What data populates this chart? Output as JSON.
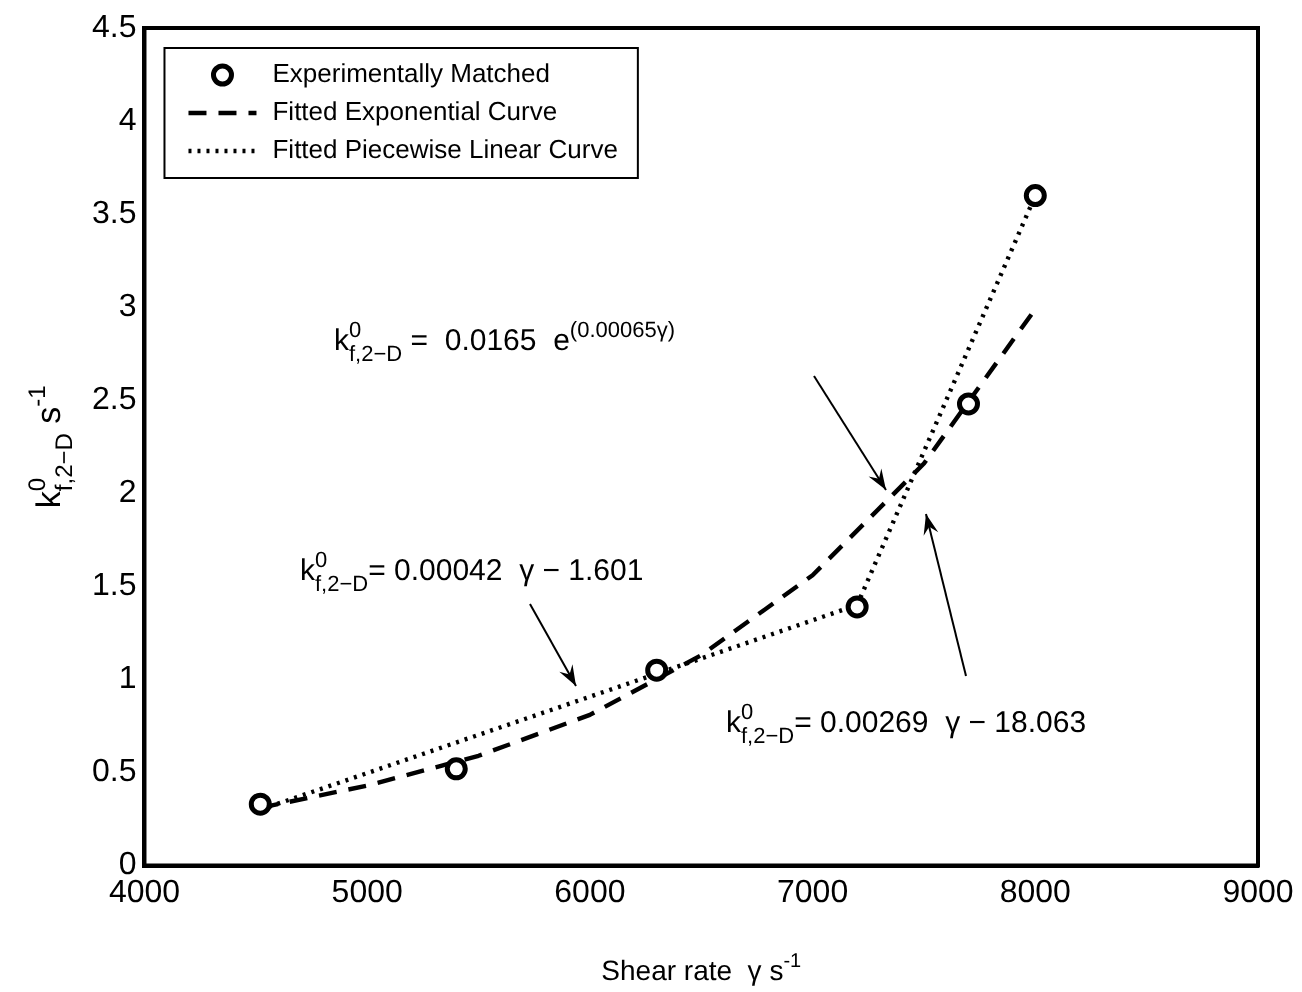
{
  "chart_data": {
    "type": "scatter",
    "xlabel": "Shear rate  γ s$^{-1}$",
    "ylabel": "k$^{0}$$_{f,2−D}$ s$^{-1}$",
    "xlim": [
      4000,
      9000
    ],
    "xticks": [
      4000,
      5000,
      6000,
      7000,
      8000,
      9000
    ],
    "ylim": [
      0,
      4.5
    ],
    "yticks": [
      0,
      0.5,
      1,
      1.5,
      2,
      2.5,
      3,
      3.5,
      4,
      4.5
    ],
    "legend": "top left",
    "grid": false,
    "series": [
      {
        "name": "Experimentally Matched",
        "marker": "circle",
        "color": "#000000",
        "x": [
          4520,
          5400,
          6300,
          7200,
          7700,
          8000
        ],
        "values": [
          0.33,
          0.52,
          1.05,
          1.39,
          2.48,
          3.6
        ]
      },
      {
        "name": "Fitted Exponential Curve",
        "type": "line",
        "line_style": "dashed",
        "marker": "none",
        "color": "#000000",
        "x": [
          4520,
          5000,
          5500,
          6000,
          6500,
          7000,
          7500,
          8000
        ],
        "values": [
          0.31,
          0.43,
          0.59,
          0.81,
          1.13,
          1.56,
          2.16,
          2.99
        ]
      },
      {
        "name": "Fitted Piecewise Linear Curve",
        "type": "line",
        "line_style": "dotted",
        "marker": "none",
        "color": "#000000",
        "x": [
          4520,
          7200,
          8000
        ],
        "values": [
          0.3,
          1.4,
          3.6
        ]
      }
    ],
    "annotations": [
      "k$^{0}$$_{f,2−D}$ =  0.0165  e$^{(0.00065γ)}$",
      "k$^{0}$$_{f,2−D}$= 0.00042  γ − 1.601",
      "k$^{0}$$_{f,2−D}$= 0.00269  γ − 18.063"
    ]
  }
}
